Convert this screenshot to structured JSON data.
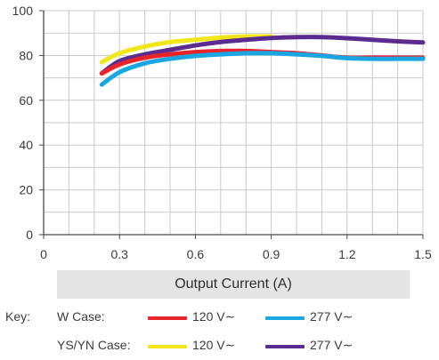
{
  "chart_data": {
    "type": "line",
    "xlabel": "Output Current (A)",
    "ylabel": "",
    "xlim": [
      0,
      1.5
    ],
    "ylim": [
      0,
      100
    ],
    "x_ticks": [
      0,
      0.3,
      0.6,
      0.9,
      1.2,
      1.5
    ],
    "x_tick_labels": [
      "0",
      "0.3",
      "0.6",
      "0.9",
      "1.2",
      "1.5"
    ],
    "y_ticks": [
      0,
      20,
      40,
      60,
      80,
      100
    ],
    "y_tick_labels": [
      "0",
      "20",
      "40",
      "60",
      "80",
      "100"
    ],
    "grid": true,
    "series": [
      {
        "color": "#f2e61a",
        "x": [
          0.23,
          0.3,
          0.4,
          0.5,
          0.6,
          0.7,
          0.8,
          0.9
        ],
        "y": [
          77,
          81,
          84,
          86,
          87,
          88,
          88.5,
          88.5
        ]
      },
      {
        "color": "#5b2c8f",
        "x": [
          0.23,
          0.3,
          0.4,
          0.5,
          0.6,
          0.7,
          0.8,
          0.9,
          1.0,
          1.1,
          1.2,
          1.3,
          1.4,
          1.5
        ],
        "y": [
          72,
          77.5,
          80.5,
          82.5,
          84.5,
          86,
          87,
          87.8,
          88.2,
          88.2,
          87.7,
          87,
          86.3,
          85.8
        ]
      },
      {
        "color": "#e8232a",
        "x": [
          0.23,
          0.3,
          0.4,
          0.5,
          0.6,
          0.7,
          0.8,
          0.9,
          1.0,
          1.1,
          1.2,
          1.3,
          1.4,
          1.5
        ],
        "y": [
          72,
          76,
          79,
          80.5,
          81.5,
          82,
          82,
          81.5,
          81,
          80,
          79,
          79,
          79,
          79
        ]
      },
      {
        "color": "#1aa7e1",
        "x": [
          0.23,
          0.3,
          0.4,
          0.5,
          0.6,
          0.7,
          0.8,
          0.9,
          1.0,
          1.1,
          1.2,
          1.3,
          1.4,
          1.5
        ],
        "y": [
          67,
          72.5,
          76.5,
          78.5,
          79.8,
          80.5,
          81,
          81,
          80.5,
          79.8,
          78.8,
          78.5,
          78.5,
          78.5
        ]
      }
    ]
  },
  "legend": {
    "key_label": "Key:",
    "rows": [
      {
        "name": "W Case:",
        "items": [
          {
            "label": "120 V∼",
            "color": "#e8232a"
          },
          {
            "label": "277 V∼",
            "color": "#1aa7e1"
          }
        ]
      },
      {
        "name": "YS/YN Case:",
        "items": [
          {
            "label": "120 V∼",
            "color": "#f2e61a"
          },
          {
            "label": "277 V∼",
            "color": "#5b2c8f"
          }
        ]
      }
    ]
  }
}
